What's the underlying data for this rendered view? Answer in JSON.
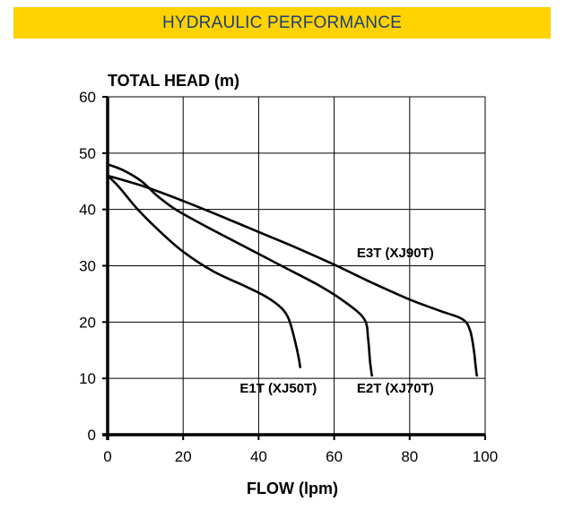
{
  "header": {
    "title": "HYDRAULIC PERFORMANCE"
  },
  "colors": {
    "banner_bg": "#ffd200",
    "banner_text": "#1d3f7a",
    "line": "#000000",
    "grid": "#000000"
  },
  "chart_data": {
    "type": "line",
    "title": "",
    "ylabel": "TOTAL HEAD (m)",
    "xlabel": "FLOW (lpm)",
    "xlim": [
      0,
      100
    ],
    "ylim": [
      0,
      60
    ],
    "x_ticks": [
      0,
      20,
      40,
      60,
      80,
      100
    ],
    "y_ticks": [
      0,
      10,
      20,
      30,
      40,
      50,
      60
    ],
    "grid": true,
    "series": [
      {
        "name": "E1T (XJ50T)",
        "points": [
          [
            0,
            46
          ],
          [
            3,
            44
          ],
          [
            8,
            40
          ],
          [
            14,
            36
          ],
          [
            20,
            32.5
          ],
          [
            28,
            29
          ],
          [
            36,
            26.5
          ],
          [
            42,
            24.5
          ],
          [
            46,
            22.5
          ],
          [
            48,
            20.5
          ],
          [
            49.5,
            17
          ],
          [
            50.5,
            14
          ],
          [
            51,
            12
          ]
        ]
      },
      {
        "name": "E2T (XJ70T)",
        "points": [
          [
            0,
            48
          ],
          [
            4,
            47
          ],
          [
            9,
            45
          ],
          [
            13,
            42.5
          ],
          [
            18,
            40
          ],
          [
            26,
            37
          ],
          [
            36,
            33.5
          ],
          [
            46,
            30
          ],
          [
            56,
            26.5
          ],
          [
            63,
            23.5
          ],
          [
            68,
            20.5
          ],
          [
            69,
            17
          ],
          [
            69.5,
            13
          ],
          [
            70,
            10.5
          ]
        ]
      },
      {
        "name": "E3T (XJ90T)",
        "points": [
          [
            0,
            46
          ],
          [
            10,
            44
          ],
          [
            20,
            41.5
          ],
          [
            30,
            38.8
          ],
          [
            40,
            36
          ],
          [
            50,
            33.2
          ],
          [
            60,
            30.2
          ],
          [
            70,
            27
          ],
          [
            80,
            24
          ],
          [
            88,
            22
          ],
          [
            94,
            20.5
          ],
          [
            96,
            18.5
          ],
          [
            97,
            15
          ],
          [
            97.5,
            12
          ],
          [
            97.8,
            10.5
          ]
        ]
      }
    ],
    "series_labels": [
      {
        "text": "E1T (XJ50T)",
        "x": 35,
        "y": 7.5
      },
      {
        "text": "E2T (XJ70T)",
        "x": 66,
        "y": 7.5
      },
      {
        "text": "E3T (XJ90T)",
        "x": 66,
        "y": 31.5
      }
    ]
  }
}
